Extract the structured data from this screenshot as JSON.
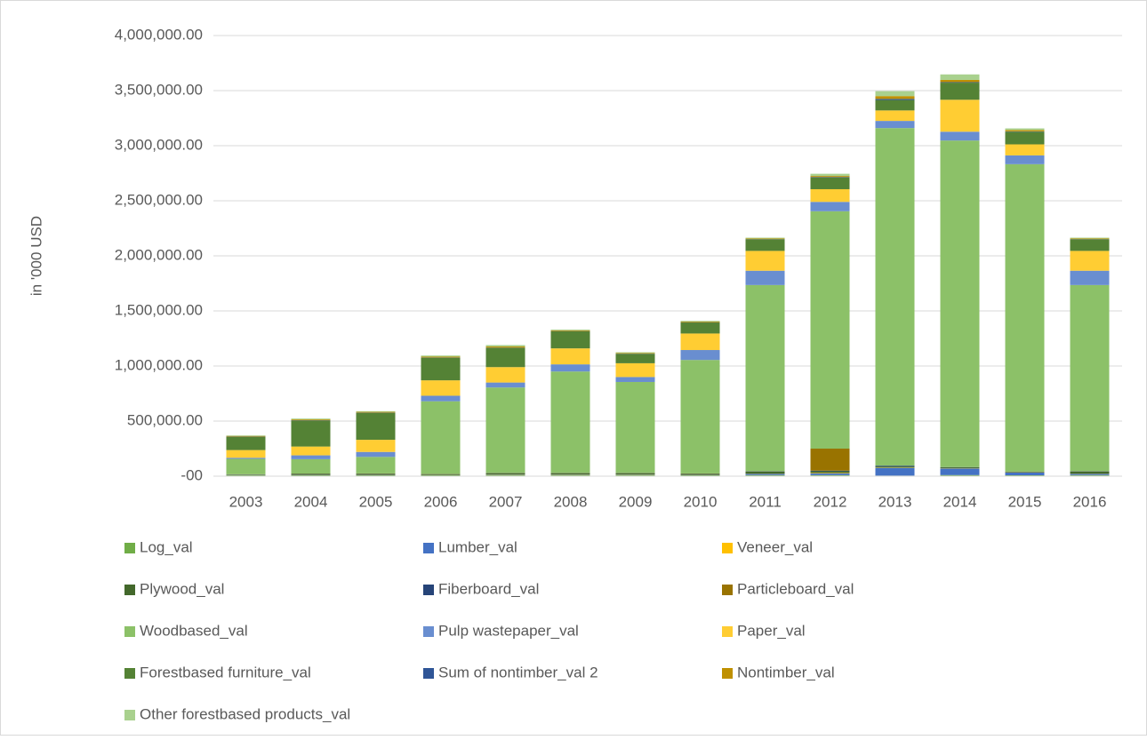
{
  "chart_data": {
    "type": "stacked_bar",
    "y_axis_label": "in '000 USD",
    "categories": [
      "2003",
      "2004",
      "2005",
      "2006",
      "2007",
      "2008",
      "2009",
      "2010",
      "2011",
      "2012",
      "2013",
      "2014",
      "2015",
      "2016"
    ],
    "ylim": [
      0,
      4000000
    ],
    "yticks": [
      {
        "value": 0,
        "label": "-00"
      },
      {
        "value": 500000,
        "label": "500,000.00"
      },
      {
        "value": 1000000,
        "label": "1,000,000.00"
      },
      {
        "value": 1500000,
        "label": "1,500,000.00"
      },
      {
        "value": 2000000,
        "label": "2,000,000.00"
      },
      {
        "value": 2500000,
        "label": "2,500,000.00"
      },
      {
        "value": 3000000,
        "label": "3,000,000.00"
      },
      {
        "value": 3500000,
        "label": "3,500,000.00"
      },
      {
        "value": 4000000,
        "label": "4,000,000.00"
      }
    ],
    "grid": true,
    "legend": "bottom",
    "series": [
      {
        "name": "Log_val",
        "color": "#70ad47",
        "values": [
          8000,
          8000,
          8000,
          8000,
          10000,
          10000,
          10000,
          8000,
          10000,
          10000,
          5000,
          10000,
          8000,
          10000
        ]
      },
      {
        "name": "Lumber_val",
        "color": "#4472c4",
        "values": [
          2000,
          3000,
          3000,
          2000,
          3000,
          3000,
          3000,
          3000,
          10000,
          15000,
          70000,
          60000,
          25000,
          10000
        ]
      },
      {
        "name": "Veneer_val",
        "color": "#ffc000",
        "values": [
          1000,
          1000,
          1000,
          1000,
          2000,
          2000,
          2000,
          1000,
          2000,
          5000,
          3000,
          2000,
          2000,
          2000
        ]
      },
      {
        "name": "Plywood_val",
        "color": "#43682b",
        "values": [
          4000,
          10000,
          10000,
          7000,
          12000,
          12000,
          12000,
          10000,
          20000,
          15000,
          10000,
          8000,
          5000,
          20000
        ]
      },
      {
        "name": "Fiberboard_val",
        "color": "#264478",
        "values": [
          1000,
          1000,
          1000,
          1000,
          1000,
          1000,
          1000,
          1000,
          2000,
          5000,
          7000,
          2000,
          2000,
          2000
        ]
      },
      {
        "name": "Particleboard_val",
        "color": "#997300",
        "values": [
          1000,
          1000,
          2000,
          1000,
          2000,
          2000,
          2000,
          2000,
          1000,
          200000,
          0,
          0,
          0,
          1000
        ]
      },
      {
        "name": "Woodbased_val",
        "color": "#8cc168",
        "values": [
          140000,
          130000,
          150000,
          660000,
          775000,
          920000,
          825000,
          1030000,
          1690000,
          2155000,
          3065000,
          2965000,
          2790000,
          1690000
        ]
      },
      {
        "name": "Pulp wastepaper_val",
        "color": "#698ed0",
        "values": [
          10000,
          35000,
          45000,
          50000,
          45000,
          65000,
          45000,
          90000,
          130000,
          85000,
          65000,
          80000,
          80000,
          130000
        ]
      },
      {
        "name": "Paper_val",
        "color": "#ffcd33",
        "values": [
          70000,
          80000,
          110000,
          140000,
          140000,
          145000,
          125000,
          150000,
          180000,
          115000,
          95000,
          290000,
          100000,
          180000
        ]
      },
      {
        "name": "Forestbased furniture_val",
        "color": "#548235",
        "values": [
          120000,
          235000,
          245000,
          205000,
          175000,
          155000,
          85000,
          100000,
          105000,
          105000,
          95000,
          155000,
          115000,
          105000
        ]
      },
      {
        "name": "Sum of nontimber_val 2",
        "color": "#2f5597",
        "values": [
          2000,
          3000,
          2000,
          2000,
          2000,
          2000,
          2000,
          2000,
          2000,
          5000,
          10000,
          5000,
          3000,
          2000
        ]
      },
      {
        "name": "Nontimber_val",
        "color": "#bf9000",
        "values": [
          6000,
          8000,
          7000,
          8000,
          10000,
          7000,
          6000,
          6000,
          6000,
          10000,
          25000,
          20000,
          12000,
          6000
        ]
      },
      {
        "name": "Other forestbased products_val",
        "color": "#a9d18e",
        "values": [
          5000,
          8000,
          6000,
          10000,
          13000,
          7000,
          7000,
          7000,
          7000,
          20000,
          45000,
          50000,
          15000,
          7000
        ]
      }
    ]
  }
}
